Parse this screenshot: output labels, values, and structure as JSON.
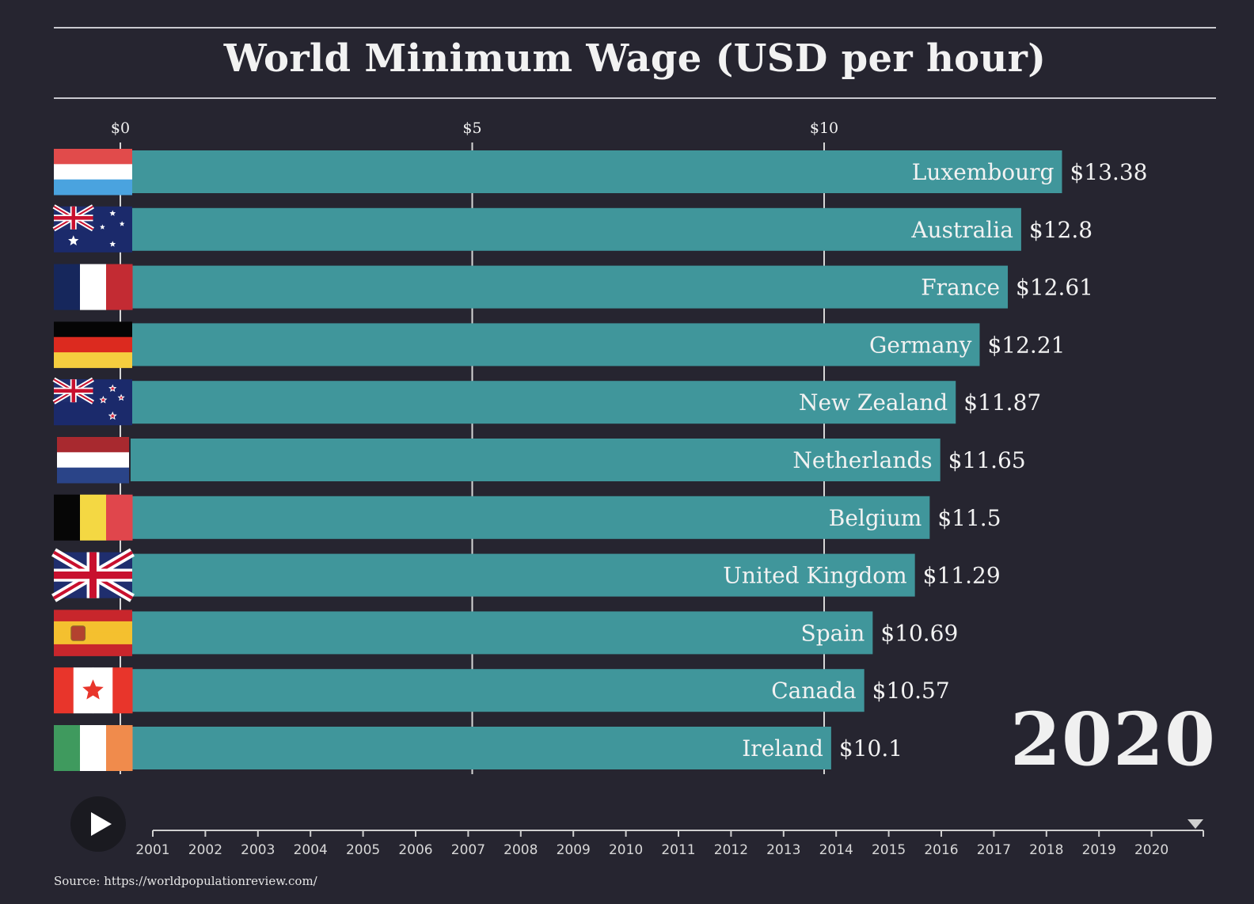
{
  "title": "World Minimum Wage (USD per hour)",
  "source": "Source: https://worldpopulationreview.com/",
  "current_year": "2020",
  "colors": {
    "background": "#262530",
    "bar": "#40969b",
    "text": "#f2f2f2",
    "axis": "#d9d9d9"
  },
  "timeline": {
    "years": [
      "2001",
      "2002",
      "2003",
      "2004",
      "2005",
      "2006",
      "2007",
      "2008",
      "2009",
      "2010",
      "2011",
      "2012",
      "2013",
      "2014",
      "2015",
      "2016",
      "2017",
      "2018",
      "2019",
      "2020"
    ],
    "selected": "2020"
  },
  "play_icon": "play-icon",
  "chart_data": {
    "type": "bar",
    "orientation": "horizontal",
    "title": "World Minimum Wage (USD per hour)",
    "xlim": [
      0,
      15
    ],
    "ticks": [
      {
        "value": 0,
        "label": "$0"
      },
      {
        "value": 5,
        "label": "$5"
      },
      {
        "value": 10,
        "label": "$10"
      }
    ],
    "grid": true,
    "categories": [
      "Luxembourg",
      "Australia",
      "France",
      "Germany",
      "New Zealand",
      "Netherlands",
      "Belgium",
      "United Kingdom",
      "Spain",
      "Canada",
      "Ireland"
    ],
    "values": [
      13.38,
      12.8,
      12.61,
      12.21,
      11.87,
      11.65,
      11.5,
      11.29,
      10.69,
      10.57,
      10.1
    ],
    "value_labels": [
      "$13.38",
      "$12.8",
      "$12.61",
      "$12.21",
      "$11.87",
      "$11.65",
      "$11.5",
      "$11.29",
      "$10.69",
      "$10.57",
      "$10.1"
    ],
    "flags": [
      "luxembourg-flag-icon",
      "australia-flag-icon",
      "france-flag-icon",
      "germany-flag-icon",
      "new-zealand-flag-icon",
      "netherlands-flag-icon",
      "belgium-flag-icon",
      "united-kingdom-flag-icon",
      "spain-flag-icon",
      "canada-flag-icon",
      "ireland-flag-icon"
    ]
  }
}
